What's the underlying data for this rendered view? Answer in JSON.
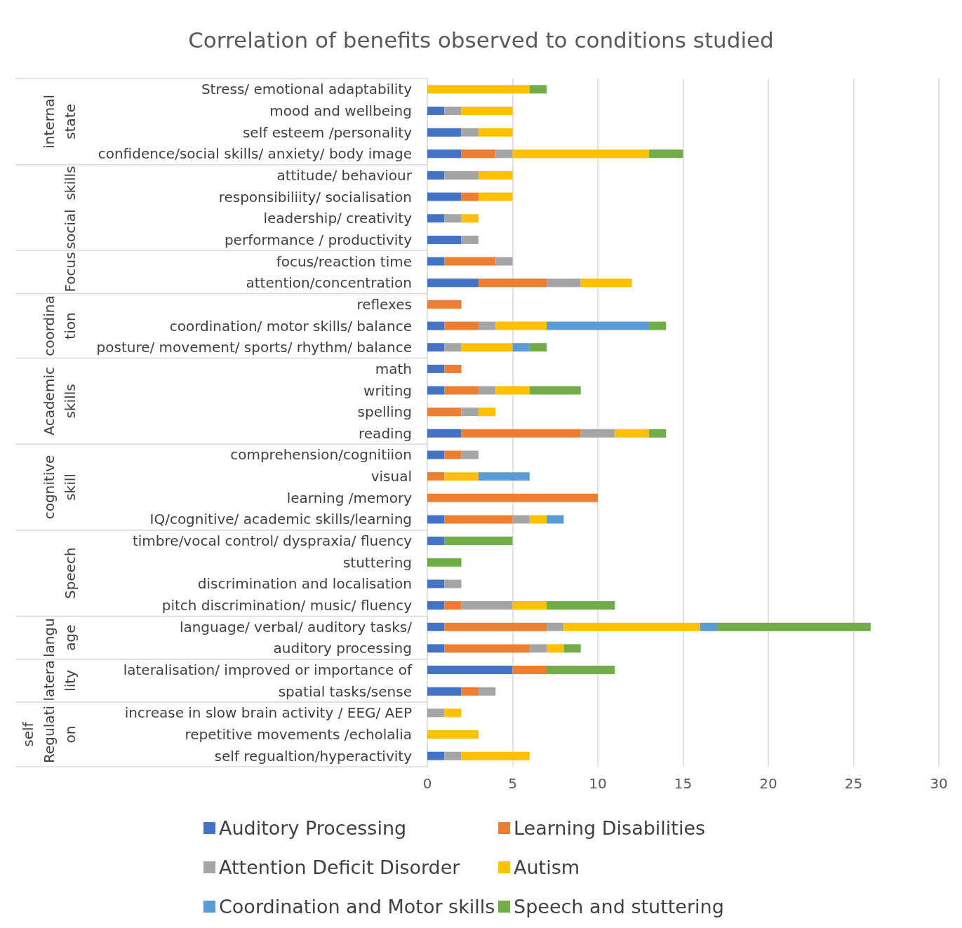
{
  "chart_data": {
    "type": "bar",
    "orientation": "horizontal",
    "stacked": true,
    "title": "Correlation of benefits observed to conditions studied",
    "categories": [
      "Stress/ emotional adaptability",
      "mood and wellbeing",
      "self esteem /personality",
      "confidence/social skills/ anxiety/ body image",
      "attitude/ behaviour",
      "responsibiliity/ socialisation",
      "leadership/ creativity",
      "performance / productivity",
      "focus/reaction time",
      "attention/concentration",
      "reflexes",
      "coordination/ motor skills/ balance",
      "posture/ movement/ sports/ rhythm/ balance",
      "math",
      "writing",
      "spelling",
      "reading",
      "comprehension/cognitiion",
      "visual",
      "learning /memory",
      "IQ/cognitive/ academic skills/learning",
      "timbre/vocal control/ dyspraxia/ fluency",
      "stuttering",
      "discrimination and localisation",
      "pitch discrimination/ music/ fluency",
      "language/ verbal/ auditory tasks/",
      "auditory processing",
      "lateralisation/ improved or importance of",
      "spatial tasks/sense",
      "increase in slow brain activity / EEG/ AEP",
      "repetitive movements /echolalia",
      "self regualtion/hyperactivity"
    ],
    "series": [
      {
        "name": "Auditory Processing",
        "color": "#4472c4",
        "values": [
          0,
          1,
          2,
          2,
          1,
          2,
          1,
          2,
          1,
          3,
          0,
          1,
          1,
          1,
          1,
          0,
          2,
          1,
          0,
          0,
          1,
          1,
          0,
          1,
          1,
          1,
          1,
          5,
          2,
          0,
          0,
          1
        ]
      },
      {
        "name": "Learning Disabilities",
        "color": "#ed7d31",
        "values": [
          0,
          0,
          0,
          2,
          0,
          1,
          0,
          0,
          3,
          4,
          2,
          2,
          0,
          1,
          2,
          2,
          7,
          1,
          1,
          10,
          4,
          0,
          0,
          0,
          1,
          6,
          5,
          2,
          1,
          0,
          0,
          0
        ]
      },
      {
        "name": "Attention Deficit Disorder",
        "color": "#a5a5a5",
        "values": [
          0,
          1,
          1,
          1,
          2,
          0,
          1,
          1,
          1,
          2,
          0,
          1,
          1,
          0,
          1,
          1,
          2,
          1,
          0,
          0,
          1,
          0,
          0,
          1,
          3,
          1,
          1,
          0,
          1,
          1,
          0,
          1
        ]
      },
      {
        "name": "Autism",
        "color": "#ffc000",
        "values": [
          6,
          3,
          2,
          8,
          2,
          2,
          1,
          0,
          0,
          3,
          0,
          3,
          3,
          0,
          2,
          1,
          2,
          0,
          2,
          0,
          1,
          0,
          0,
          0,
          2,
          8,
          1,
          0,
          0,
          1,
          3,
          4
        ]
      },
      {
        "name": "Coordination and Motor skills",
        "color": "#5b9bd5",
        "values": [
          0,
          0,
          0,
          0,
          0,
          0,
          0,
          0,
          0,
          0,
          0,
          6,
          1,
          0,
          0,
          0,
          0,
          0,
          3,
          0,
          1,
          0,
          0,
          0,
          0,
          1,
          0,
          0,
          0,
          0,
          0,
          0
        ]
      },
      {
        "name": "Speech and stuttering",
        "color": "#70ad47",
        "values": [
          1,
          0,
          0,
          2,
          0,
          0,
          0,
          0,
          0,
          0,
          0,
          1,
          1,
          0,
          3,
          0,
          1,
          0,
          0,
          0,
          0,
          4,
          2,
          0,
          4,
          9,
          1,
          4,
          0,
          0,
          0,
          0
        ]
      }
    ],
    "annotations": [
      "internal\nstate",
      "social  skills",
      "Focus",
      "coordina\ntion",
      "Academic\nskills",
      "cognitive\nskill",
      "Speech",
      "langu\nage",
      "latera\nlity",
      "self\nRegulati\non"
    ],
    "xlim": [
      0,
      30
    ],
    "xticks": [
      0,
      5,
      10,
      15,
      20,
      25,
      30
    ],
    "grid": "x",
    "legend": "bottom"
  }
}
